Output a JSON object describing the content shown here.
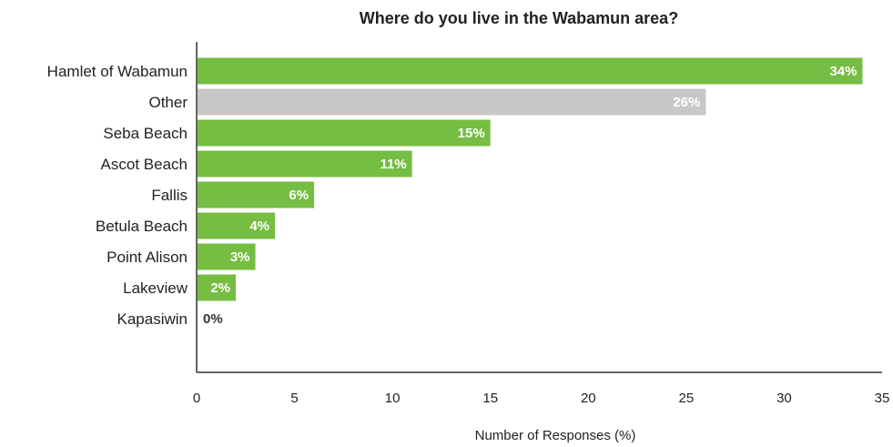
{
  "chart_data": {
    "type": "bar",
    "orientation": "horizontal",
    "title": "Where do you live in the Wabamun area?",
    "xlabel": "Number of Responses (%)",
    "ylabel": "",
    "xlim": [
      0,
      35
    ],
    "xticks": [
      "0",
      "5",
      "10",
      "15",
      "20",
      "25",
      "30",
      "35"
    ],
    "grid": false,
    "categories": [
      "Hamlet of Wabamun",
      "Other",
      "Seba Beach",
      "Ascot Beach",
      "Fallis",
      "Betula Beach",
      "Point Alison",
      "Lakeview",
      "Kapasiwin"
    ],
    "values": [
      34,
      26,
      15,
      11,
      6,
      4,
      3,
      2,
      0
    ],
    "data_labels": [
      "34%",
      "26%",
      "15%",
      "11%",
      "6%",
      "4%",
      "3%",
      "2%",
      "0%"
    ],
    "bar_colors": [
      "#76bd43",
      "#c8c8c8",
      "#76bd43",
      "#76bd43",
      "#76bd43",
      "#76bd43",
      "#76bd43",
      "#76bd43",
      "#76bd43"
    ],
    "label_color_inside": "#ffffff",
    "label_color_outside": "#333333",
    "axis_color": "#333333"
  }
}
